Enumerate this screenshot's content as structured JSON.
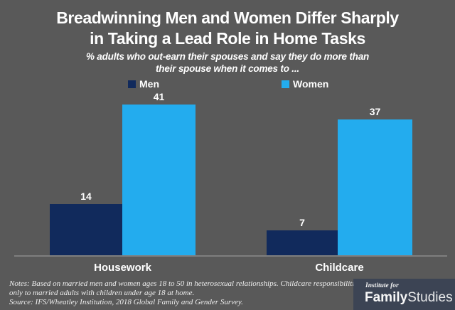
{
  "header": {
    "title_line1": "Breadwinning Men and Women Differ Sharply",
    "title_line2": "in Taking a Lead Role in Home Tasks",
    "subtitle_line1": "% adults who out-earn their spouses and say they do more than",
    "subtitle_line2": "their spouse when it comes to ..."
  },
  "chart_data": {
    "type": "bar",
    "categories": [
      "Housework",
      "Childcare"
    ],
    "series": [
      {
        "name": "Men",
        "color": "#112a5c",
        "values": [
          14,
          7
        ]
      },
      {
        "name": "Women",
        "color": "#23acee",
        "values": [
          41,
          37
        ]
      }
    ],
    "ylim": [
      0,
      45
    ],
    "grid": false,
    "legend_position": "top-inside",
    "value_labels": true,
    "axis_line_color": "#7f7f7f"
  },
  "footer": {
    "notes_line1": "Notes: Based on married men and women ages 18 to 50 in heterosexual relationships. Childcare responsibilities apply",
    "notes_line2": "only to married adults with children under age 18 at home.",
    "source": "Source:  IFS/Wheatley Institution, 2018 Global Family and Gender Survey."
  },
  "logo": {
    "institute_for": "Institute for",
    "family": "Family",
    "studies": "Studies"
  },
  "colors": {
    "background": "#595959",
    "men": "#112a5c",
    "women": "#23acee",
    "axis": "#7f7f7f",
    "logo_bg": "#3c4454",
    "text": "#ffffff"
  }
}
